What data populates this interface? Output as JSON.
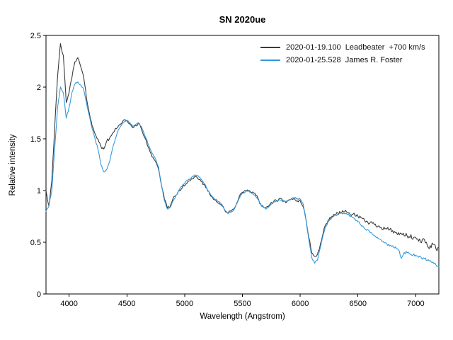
{
  "chart_data": {
    "type": "line",
    "title": "SN 2020ue",
    "xlabel": "Wavelength (Angstrom)",
    "ylabel": "Relative intensity",
    "xlim": [
      3800,
      7200
    ],
    "ylim": [
      0,
      2.5
    ],
    "xticks": [
      4000,
      4500,
      5000,
      5500,
      6000,
      6500,
      7000
    ],
    "yticks": [
      0,
      0.5,
      1,
      1.5,
      2,
      2.5
    ],
    "grid": false,
    "legend_position": "top-right",
    "x": [
      3800,
      3825,
      3850,
      3875,
      3900,
      3925,
      3950,
      3975,
      4000,
      4025,
      4050,
      4075,
      4100,
      4125,
      4150,
      4175,
      4200,
      4225,
      4250,
      4275,
      4300,
      4325,
      4350,
      4375,
      4400,
      4425,
      4450,
      4475,
      4500,
      4525,
      4550,
      4575,
      4600,
      4625,
      4650,
      4675,
      4700,
      4725,
      4750,
      4775,
      4800,
      4825,
      4850,
      4875,
      4900,
      4925,
      4950,
      4975,
      5000,
      5025,
      5050,
      5075,
      5100,
      5125,
      5150,
      5175,
      5200,
      5225,
      5250,
      5275,
      5300,
      5325,
      5350,
      5375,
      5400,
      5425,
      5450,
      5475,
      5500,
      5525,
      5550,
      5575,
      5600,
      5625,
      5650,
      5675,
      5700,
      5725,
      5750,
      5775,
      5800,
      5825,
      5850,
      5875,
      5900,
      5925,
      5950,
      5975,
      6000,
      6025,
      6050,
      6075,
      6100,
      6125,
      6150,
      6175,
      6200,
      6225,
      6250,
      6275,
      6300,
      6325,
      6350,
      6375,
      6400,
      6425,
      6450,
      6475,
      6500,
      6525,
      6550,
      6575,
      6600,
      6625,
      6650,
      6675,
      6700,
      6725,
      6750,
      6775,
      6800,
      6825,
      6850,
      6875,
      6900,
      6925,
      6950,
      6975,
      7000,
      7025,
      7050,
      7075,
      7100,
      7125,
      7150,
      7175,
      7200
    ],
    "series": [
      {
        "name": "2020-01-19.100  Leadbeater  +700 km/s",
        "color": "#3a3a3a",
        "values": [
          1.0,
          0.85,
          1.1,
          1.6,
          2.1,
          2.42,
          2.3,
          1.85,
          1.95,
          2.1,
          2.25,
          2.28,
          2.2,
          2.1,
          1.9,
          1.75,
          1.62,
          1.55,
          1.5,
          1.42,
          1.4,
          1.48,
          1.5,
          1.55,
          1.6,
          1.62,
          1.65,
          1.68,
          1.67,
          1.65,
          1.6,
          1.63,
          1.65,
          1.6,
          1.52,
          1.45,
          1.38,
          1.32,
          1.28,
          1.2,
          1.05,
          0.92,
          0.83,
          0.85,
          0.92,
          0.95,
          1.0,
          1.02,
          1.05,
          1.08,
          1.1,
          1.12,
          1.13,
          1.1,
          1.08,
          1.05,
          1.0,
          0.95,
          0.92,
          0.9,
          0.88,
          0.85,
          0.8,
          0.78,
          0.8,
          0.82,
          0.88,
          0.95,
          0.98,
          1.0,
          1.0,
          0.98,
          0.97,
          0.95,
          0.88,
          0.85,
          0.83,
          0.85,
          0.88,
          0.9,
          0.9,
          0.92,
          0.9,
          0.88,
          0.9,
          0.92,
          0.92,
          0.9,
          0.9,
          0.85,
          0.72,
          0.55,
          0.4,
          0.36,
          0.38,
          0.48,
          0.6,
          0.68,
          0.72,
          0.75,
          0.77,
          0.78,
          0.79,
          0.8,
          0.79,
          0.78,
          0.77,
          0.76,
          0.75,
          0.73,
          0.72,
          0.7,
          0.69,
          0.68,
          0.67,
          0.66,
          0.65,
          0.64,
          0.63,
          0.62,
          0.61,
          0.6,
          0.58,
          0.57,
          0.57,
          0.56,
          0.55,
          0.54,
          0.53,
          0.52,
          0.5,
          0.52,
          0.48,
          0.46,
          0.48,
          0.45,
          0.44
        ]
      },
      {
        "name": "2020-01-25.528  James R. Foster",
        "color": "#3399dd",
        "values": [
          0.8,
          0.85,
          1.0,
          1.4,
          1.8,
          2.0,
          1.95,
          1.7,
          1.8,
          1.95,
          2.03,
          2.05,
          2.02,
          1.98,
          1.85,
          1.72,
          1.6,
          1.5,
          1.4,
          1.25,
          1.18,
          1.2,
          1.28,
          1.4,
          1.5,
          1.58,
          1.63,
          1.66,
          1.68,
          1.66,
          1.62,
          1.64,
          1.65,
          1.62,
          1.55,
          1.48,
          1.4,
          1.35,
          1.3,
          1.22,
          1.05,
          0.9,
          0.82,
          0.84,
          0.9,
          0.95,
          1.0,
          1.04,
          1.07,
          1.1,
          1.12,
          1.14,
          1.15,
          1.13,
          1.1,
          1.06,
          1.0,
          0.96,
          0.93,
          0.91,
          0.89,
          0.86,
          0.81,
          0.78,
          0.79,
          0.81,
          0.87,
          0.93,
          0.97,
          0.99,
          1.0,
          0.98,
          0.96,
          0.93,
          0.88,
          0.84,
          0.82,
          0.84,
          0.87,
          0.89,
          0.9,
          0.91,
          0.9,
          0.89,
          0.91,
          0.92,
          0.93,
          0.92,
          0.92,
          0.87,
          0.72,
          0.52,
          0.35,
          0.3,
          0.33,
          0.45,
          0.58,
          0.66,
          0.71,
          0.74,
          0.76,
          0.77,
          0.78,
          0.78,
          0.78,
          0.76,
          0.74,
          0.72,
          0.7,
          0.67,
          0.64,
          0.62,
          0.6,
          0.58,
          0.56,
          0.54,
          0.52,
          0.5,
          0.48,
          0.47,
          0.46,
          0.45,
          0.43,
          0.35,
          0.4,
          0.4,
          0.39,
          0.38,
          0.37,
          0.36,
          0.35,
          0.34,
          0.33,
          0.32,
          0.31,
          0.28,
          0.26
        ]
      }
    ]
  }
}
